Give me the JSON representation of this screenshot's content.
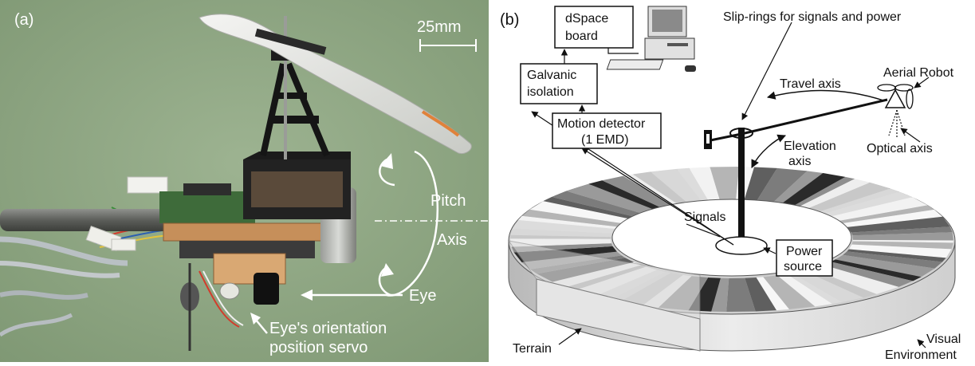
{
  "panel_a": {
    "label": "(a)",
    "scale_bar": "25mm",
    "pitch": "Pitch",
    "axis": "Axis",
    "eye": "Eye",
    "servo_line1": "Eye's orientation",
    "servo_line2": "position servo",
    "colors": {
      "background": "#95ab88",
      "label": "#ffffff"
    }
  },
  "panel_b": {
    "label": "(b)",
    "dspace_line1": "dSpace",
    "dspace_line2": "board",
    "galvanic_line1": "Galvanic",
    "galvanic_line2": "isolation",
    "motion_line1": "Motion detector",
    "motion_line2": "(1 EMD)",
    "slip_rings": "Slip-rings for signals and power",
    "aerial_robot": "Aerial Robot",
    "travel_axis": "Travel axis",
    "elevation_line1": "Elevation",
    "elevation_line2": "axis",
    "optical_axis": "Optical axis",
    "signals": "Signals",
    "power_line1": "Power",
    "power_line2": "source",
    "terrain": "Terrain",
    "visual_line1": "Visual",
    "visual_line2": "Environment"
  }
}
